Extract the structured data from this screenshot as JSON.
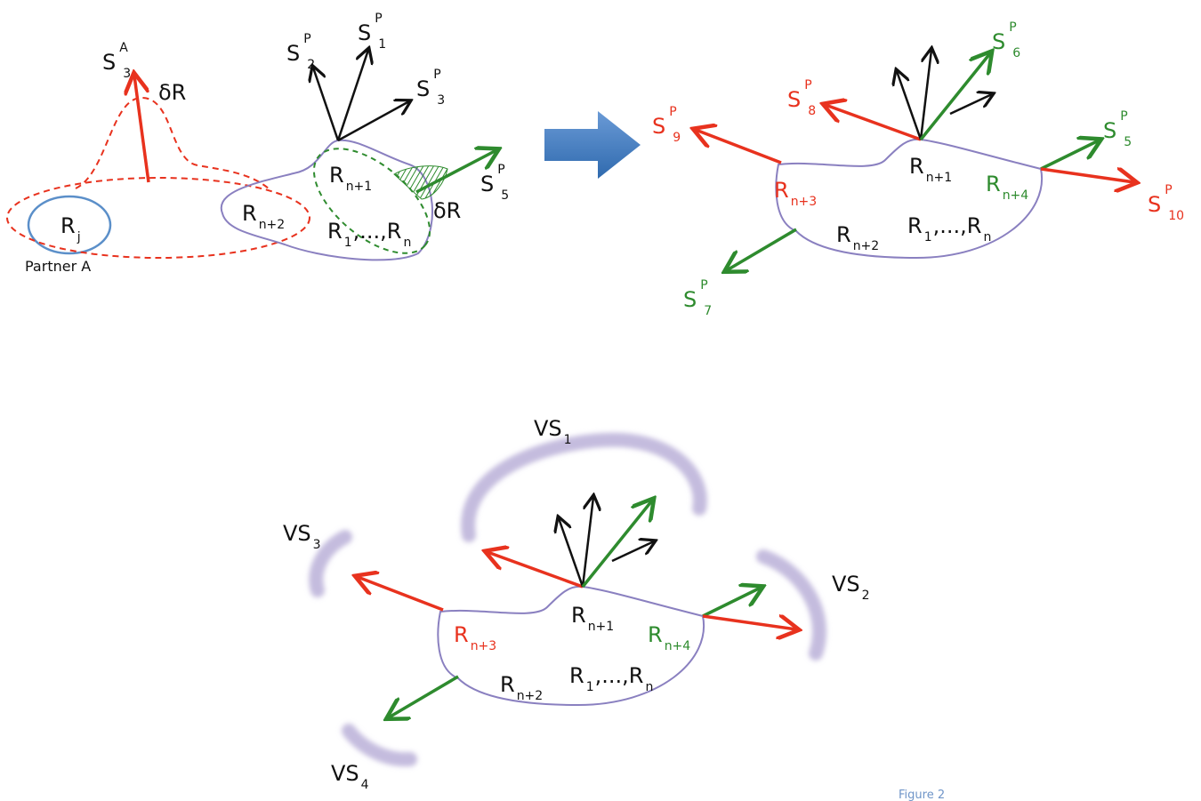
{
  "panels": [
    {
      "labels": [
        {
          "parts": [
            {
              "text": "S"
            },
            {
              "sup": "A"
            },
            {
              "sub": "3"
            }
          ]
        },
        {
          "parts": [
            {
              "text": "δR"
            }
          ]
        },
        {
          "parts": [
            {
              "text": "R"
            },
            {
              "sub": "j"
            }
          ]
        },
        {
          "parts": [
            {
              "text": "Partner A"
            }
          ]
        },
        {
          "parts": [
            {
              "text": "S"
            },
            {
              "sup": "P"
            },
            {
              "sub": "2"
            }
          ]
        },
        {
          "parts": [
            {
              "text": "S"
            },
            {
              "sup": "P"
            },
            {
              "sub": "1"
            }
          ]
        },
        {
          "parts": [
            {
              "text": "S"
            },
            {
              "sup": "P"
            },
            {
              "sub": "3"
            }
          ]
        },
        {
          "parts": [
            {
              "text": "R"
            },
            {
              "sub": "n+1"
            }
          ]
        },
        {
          "parts": [
            {
              "text": "R"
            },
            {
              "sub": "n+2"
            }
          ]
        },
        {
          "parts": [
            {
              "text": "R"
            },
            {
              "sub": "1"
            },
            {
              "text": ",...,R"
            },
            {
              "sub": "n"
            }
          ]
        },
        {
          "parts": [
            {
              "text": "S"
            },
            {
              "sup": "P"
            },
            {
              "sub": "5"
            }
          ]
        },
        {
          "parts": [
            {
              "text": "δR"
            }
          ]
        }
      ]
    },
    {
      "labels": [
        {
          "parts": [
            {
              "text": "S"
            },
            {
              "sup": "P"
            },
            {
              "sub": "9"
            }
          ]
        },
        {
          "parts": [
            {
              "text": "S"
            },
            {
              "sup": "P"
            },
            {
              "sub": "8"
            }
          ]
        },
        {
          "parts": [
            {
              "text": "S"
            },
            {
              "sup": "P"
            },
            {
              "sub": "6"
            }
          ]
        },
        {
          "parts": [
            {
              "text": "S"
            },
            {
              "sup": "P"
            },
            {
              "sub": "5"
            }
          ]
        },
        {
          "parts": [
            {
              "text": "S"
            },
            {
              "sup": "P"
            },
            {
              "sub": "10"
            }
          ]
        },
        {
          "parts": [
            {
              "text": "R"
            },
            {
              "sub": "n+1"
            }
          ]
        },
        {
          "parts": [
            {
              "text": "R"
            },
            {
              "sub": "n+3"
            }
          ]
        },
        {
          "parts": [
            {
              "text": "R"
            },
            {
              "sub": "n+4"
            }
          ]
        },
        {
          "parts": [
            {
              "text": "R"
            },
            {
              "sub": "n+2"
            }
          ]
        },
        {
          "parts": [
            {
              "text": "R"
            },
            {
              "sub": "1"
            },
            {
              "text": ",...,R"
            },
            {
              "sub": "n"
            }
          ]
        },
        {
          "parts": [
            {
              "text": "S"
            },
            {
              "sup": "P"
            },
            {
              "sub": "7"
            }
          ]
        }
      ]
    },
    {
      "labels": [
        {
          "parts": [
            {
              "text": "VS"
            },
            {
              "sub": "1"
            }
          ]
        },
        {
          "parts": [
            {
              "text": "VS"
            },
            {
              "sub": "3"
            }
          ]
        },
        {
          "parts": [
            {
              "text": "VS"
            },
            {
              "sub": "2"
            }
          ]
        },
        {
          "parts": [
            {
              "text": "VS"
            },
            {
              "sub": "4"
            }
          ]
        },
        {
          "parts": [
            {
              "text": "R"
            },
            {
              "sub": "n+1"
            }
          ]
        },
        {
          "parts": [
            {
              "text": "R"
            },
            {
              "sub": "n+3"
            }
          ]
        },
        {
          "parts": [
            {
              "text": "R"
            },
            {
              "sub": "n+4"
            }
          ]
        },
        {
          "parts": [
            {
              "text": "R"
            },
            {
              "sub": "n+2"
            }
          ]
        },
        {
          "parts": [
            {
              "text": "R"
            },
            {
              "sub": "1"
            },
            {
              "text": ",...,R"
            },
            {
              "sub": "n"
            }
          ]
        }
      ]
    }
  ],
  "caption": "Figure 2"
}
